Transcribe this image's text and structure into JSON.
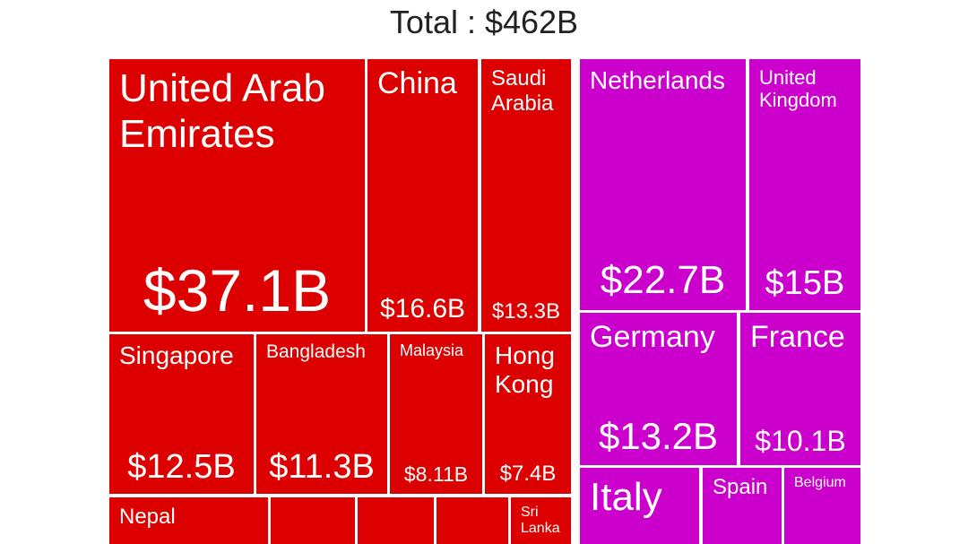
{
  "chart_data": {
    "type": "treemap",
    "title": "Total : $462B",
    "series": [
      {
        "color": "#dd0000",
        "categories": [
          "United Arab Emirates",
          "China",
          "Saudi Arabia",
          "Singapore",
          "Bangladesh",
          "Malaysia",
          "Hong Kong",
          "Nepal",
          null,
          null,
          null,
          "Sri Lanka"
        ],
        "values": [
          37.1,
          16.6,
          13.3,
          12.5,
          11.3,
          8.11,
          7.4,
          5.3,
          2.9,
          2.6,
          2.5,
          2.0
        ],
        "value_labels": [
          "$37.1B",
          "$16.6B",
          "$13.3B",
          "$12.5B",
          "$11.3B",
          "$8.11B",
          "$7.4B",
          null,
          null,
          null,
          null,
          null
        ]
      },
      {
        "color": "#cc00cc",
        "categories": [
          "Netherlands",
          "United Kingdom",
          "Germany",
          "France",
          "Italy",
          "Spain",
          "Belgium"
        ],
        "values": [
          22.7,
          15,
          13.2,
          10.1,
          7.0,
          4.6,
          4.5
        ],
        "value_labels": [
          "$22.7B",
          "$15B",
          "$13.2B",
          "$10.1B",
          null,
          null,
          null
        ]
      }
    ]
  }
}
